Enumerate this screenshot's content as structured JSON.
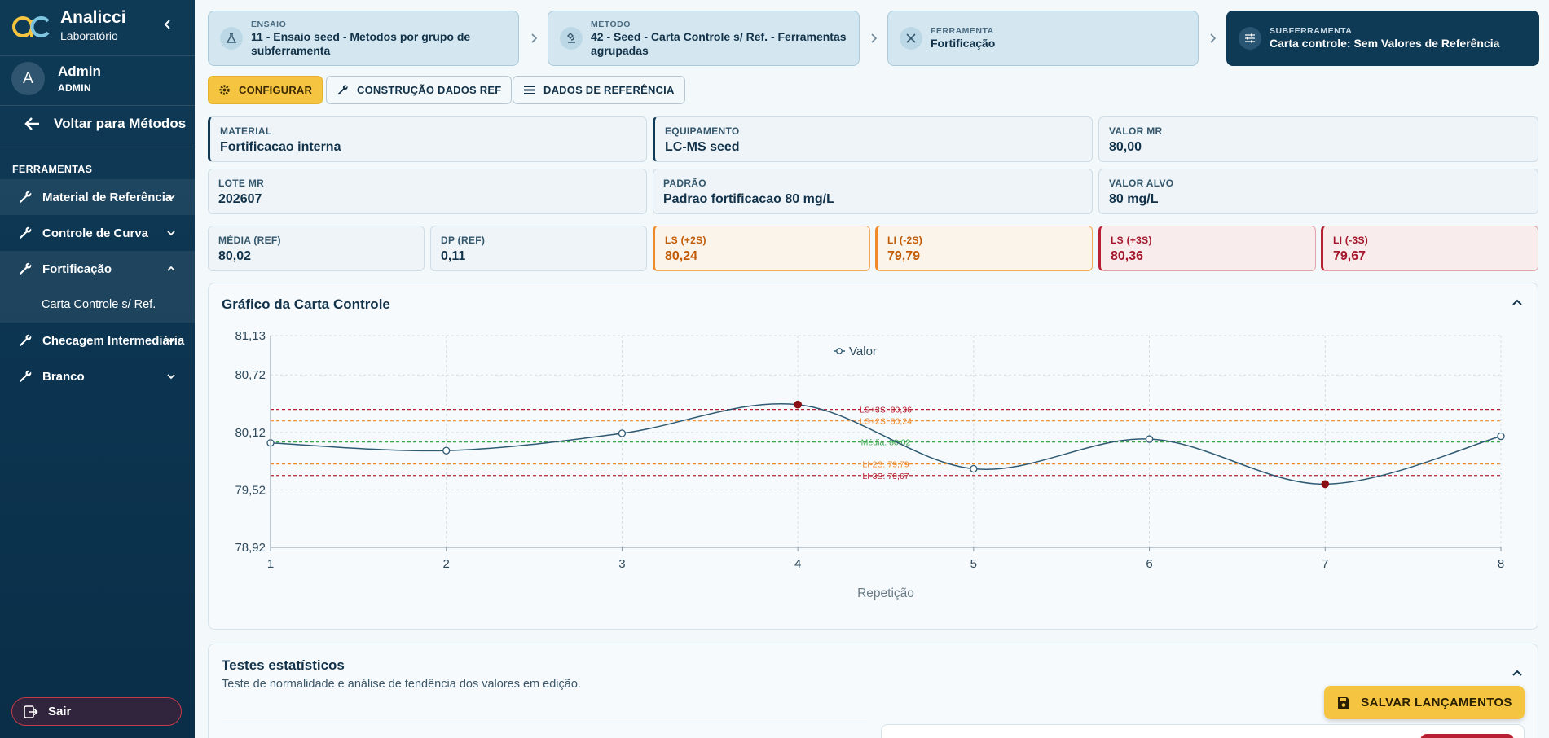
{
  "app": {
    "name": "Analicci",
    "subtitle": "Laboratório"
  },
  "user": {
    "initial": "A",
    "name": "Admin",
    "role": "ADMIN"
  },
  "sidebar": {
    "back_label": "Voltar para Métodos",
    "section_title": "FERRAMENTAS",
    "items": [
      {
        "label": "Material de Referência",
        "chevron": "down"
      },
      {
        "label": "Controle de Curva",
        "chevron": "down"
      },
      {
        "label": "Fortificação",
        "chevron": "up"
      },
      {
        "label": "Checagem Intermediária",
        "chevron": "down"
      },
      {
        "label": "Branco",
        "chevron": "down"
      }
    ],
    "sub_item": "Carta Controle s/ Ref.",
    "logout_label": "Sair"
  },
  "breadcrumb": [
    {
      "caption": "ENSAIO",
      "value": "11 - Ensaio seed - Metodos por grupo de subferramenta",
      "icon": "flask-icon"
    },
    {
      "caption": "MÉTODO",
      "value": "42 - Seed - Carta Controle s/ Ref. - Ferramentas agrupadas",
      "icon": "microscope-icon"
    },
    {
      "caption": "FERRAMENTA",
      "value": "Fortificação",
      "icon": "tools-icon"
    },
    {
      "caption": "SUBFERRAMENTA",
      "value": "Carta controle: Sem Valores de Referência",
      "icon": "sliders-icon"
    }
  ],
  "toolbar": {
    "configure": "CONFIGURAR",
    "build_ref": "CONSTRUÇÃO DADOS REF",
    "ref_data": "DADOS DE REFERÊNCIA"
  },
  "info": {
    "material": {
      "caption": "MATERIAL",
      "value": "Fortificacao interna"
    },
    "equipment": {
      "caption": "EQUIPAMENTO",
      "value": "LC-MS seed"
    },
    "valor_mr": {
      "caption": "VALOR MR",
      "value": "80,00"
    },
    "lote_mr": {
      "caption": "LOTE MR",
      "value": "202607"
    },
    "padrao": {
      "caption": "PADRÃO",
      "value": "Padrao fortificacao 80 mg/L"
    },
    "valor_alvo": {
      "caption": "VALOR ALVO",
      "value": "80 mg/L"
    }
  },
  "stats": {
    "media": {
      "caption": "MÉDIA (REF)",
      "value": "80,02"
    },
    "dp": {
      "caption": "DP (REF)",
      "value": "0,11"
    },
    "ls2": {
      "caption": "LS (+2S)",
      "value": "80,24"
    },
    "li2": {
      "caption": "LI (-2S)",
      "value": "79,79"
    },
    "ls3": {
      "caption": "LS (+3S)",
      "value": "80,36"
    },
    "li3": {
      "caption": "LI (-3S)",
      "value": "79,67"
    }
  },
  "chart_panel": {
    "title": "Gráfico da Carta Controle"
  },
  "chart_data": {
    "type": "line",
    "xlabel": "Repetição",
    "x": [
      1,
      2,
      3,
      4,
      5,
      6,
      7,
      8
    ],
    "y_ticks": [
      "81,13",
      "80,72",
      "80,12",
      "79,52",
      "78,92"
    ],
    "y_tick_values": [
      81.13,
      80.72,
      80.12,
      79.52,
      78.92
    ],
    "ylim": [
      78.92,
      81.13
    ],
    "grid": true,
    "legend_position": "top-center",
    "series": [
      {
        "name": "Valor",
        "values": [
          80.01,
          79.93,
          80.11,
          80.41,
          79.74,
          80.05,
          79.58,
          80.08
        ],
        "out_of_control": [
          false,
          false,
          false,
          true,
          false,
          false,
          true,
          false
        ]
      }
    ],
    "reference_lines": [
      {
        "label": "LS+3S: 80,36",
        "value": 80.36,
        "color": "#b81f30"
      },
      {
        "label": "LS+2S: 80,24",
        "value": 80.24,
        "color": "#ee8a2a"
      },
      {
        "label": "Média: 80,02",
        "value": 80.02,
        "color": "#3aa64a"
      },
      {
        "label": "LI-2S: 79,79",
        "value": 79.79,
        "color": "#ee8a2a"
      },
      {
        "label": "LI-3S: 79,67",
        "value": 79.67,
        "color": "#b81f30"
      }
    ]
  },
  "stats_panel": {
    "title": "Testes estatísticos",
    "subtitle": "Teste de normalidade e análise de tendência dos valores em edição."
  },
  "save_label": "SALVAR LANÇAMENTOS",
  "colors": {
    "sidebar": "#0f3a56",
    "accent": "#f5c542",
    "series": "#2f5a73",
    "violation": "#8a0f12"
  }
}
